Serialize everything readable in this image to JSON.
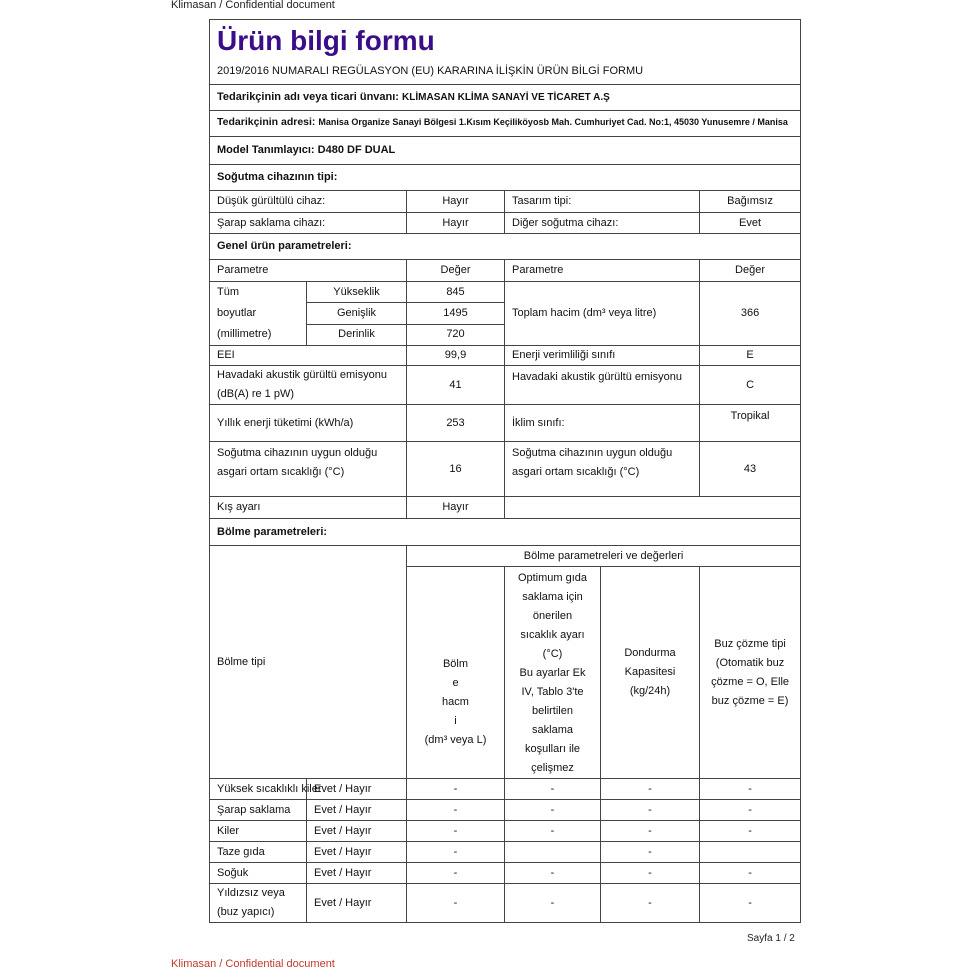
{
  "header_text": "Klimasan / Confidential document",
  "footer_text": "Klimasan / Confidential document",
  "page_label": "Sayfa 1 / 2",
  "title": "Ürün bilgi formu",
  "subtitle": "2019/2016 NUMARALI REGÜLASYON (EU) KARARINA İLİŞKİN ÜRÜN BİLGİ FORMU",
  "supplier_name_label": "Tedarikçinin adı veya ticari ünvanı:",
  "supplier_name": "KLİMASAN KLİMA SANAYİ VE TİCARET A.Ş",
  "supplier_address_label": "Tedarikçinin adresi:",
  "supplier_address": "Manisa Organize Sanayi Bölgesi 1.Kısım Keçiliköyosb Mah. Cumhuriyet Cad. No:1, 45030 Yunusemre / Manisa",
  "model_label": "Model Tanımlayıcı:",
  "model": "D480 DF DUAL",
  "type_heading": "Soğutma cihazının tipi:",
  "type": {
    "low_noise_label": "Düşük gürültülü cihaz:",
    "low_noise": "Hayır",
    "design_label": "Tasarım tipi:",
    "design": "Bağımsız",
    "wine_label": "Şarap saklama cihazı:",
    "wine": "Hayır",
    "other_label": "Diğer soğutma cihazı:",
    "other": "Evet"
  },
  "general_heading": "Genel ürün parametreleri:",
  "params": {
    "h_param": "Parametre",
    "h_value": "Değer",
    "dims_label": "Tüm boyutlar (millimetre)",
    "dims_l1": "Tüm",
    "dims_l2": "boyutlar",
    "dims_l3": "(millimetre)",
    "height_label": "Yükseklik",
    "height": "845",
    "width_label": "Genişlik",
    "width": "1495",
    "depth_label": "Derinlik",
    "depth": "720",
    "volume_label": "Toplam hacim (dm³ veya litre)",
    "volume": "366",
    "eei_label": "EEI",
    "eei": "99,9",
    "energy_class_label": "Enerji verimliliği sınıfı",
    "energy_class": "E",
    "noise_label_1": "Havadaki akustik gürültü emisyonu",
    "noise_label_2": "(dB(A) re 1 pW)",
    "noise": "41",
    "noise_class_label": "Havadaki akustik gürültü emisyonu",
    "noise_class": "C",
    "annual_energy_label": "Yıllık enerji tüketimi  (kWh/a)",
    "annual_energy": "253",
    "climate_label": "İklim sınıfı:",
    "climate": "Tropikal",
    "min_temp_label_1": "Soğutma  cihazının  uygun  olduğu",
    "min_temp_label_2": "asgari ortam sıcaklığı (°C)",
    "min_temp": "16",
    "max_temp_label_1": "Soğutma cihazının uygun olduğu",
    "max_temp_label_2": "asgari ortam sıcaklığı (°C)",
    "max_temp": "43",
    "winter_label": "Kış ayarı",
    "winter": "Hayır"
  },
  "compartment_heading": "Bölme parametreleri:",
  "compartments": {
    "type_header": "Bölme tipi",
    "group_header": "Bölme parametreleri ve değerleri",
    "col_volume": [
      "Bölm",
      "e",
      "hacm",
      "i",
      "(dm³ veya L)"
    ],
    "col_temp": [
      "Optimum gıda",
      "saklama için",
      "önerilen",
      "sıcaklık ayarı",
      "(°C)",
      "Bu ayarlar Ek",
      "IV, Tablo 3'te",
      "belirtilen",
      "saklama",
      "koşulları ile",
      "çelişmez"
    ],
    "col_freeze": [
      "Dondurma",
      "Kapasitesi",
      "(kg/24h)"
    ],
    "col_defrost": [
      "Buz  çözme tipi",
      "(Otomatik    buz",
      "çözme = O, Elle",
      "buz çözme = E)"
    ],
    "rows": [
      {
        "name": "Yüksek sıcaklıklı kiler",
        "present": "Evet / Hayır",
        "values": [
          "-",
          "-",
          "-",
          "-"
        ]
      },
      {
        "name": "Şarap saklama",
        "present": "Evet / Hayır",
        "values": [
          "-",
          "-",
          "-",
          "-"
        ]
      },
      {
        "name": "Kiler",
        "present": "Evet / Hayır",
        "values": [
          "-",
          "-",
          "-",
          "-"
        ]
      },
      {
        "name": "Taze gıda",
        "present": "Evet / Hayır",
        "values": [
          "-",
          "",
          "-",
          ""
        ]
      },
      {
        "name": "Soğuk",
        "present": "Evet / Hayır",
        "values": [
          "-",
          "-",
          "-",
          "-"
        ]
      },
      {
        "name": "Yıldızsız veya (buz yapıcı)",
        "name_lines": [
          "Yıldızsız veya",
          "(buz yapıcı)"
        ],
        "present": "Evet / Hayır",
        "values": [
          "-",
          "-",
          "-",
          "-"
        ]
      }
    ]
  },
  "colors": {
    "title": "#3a0d8a",
    "footer": "#c0392b",
    "border": "#444444"
  }
}
